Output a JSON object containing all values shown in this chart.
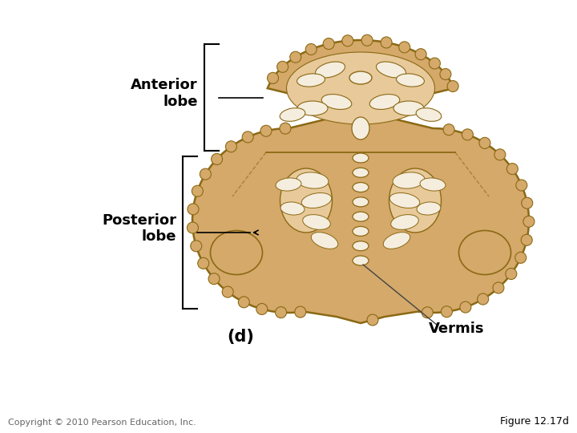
{
  "background_color": "#ffffff",
  "cerebellum_color": "#d4a96a",
  "cerebellum_inner_color": "#e8c99a",
  "cerebellum_outline_color": "#8b6914",
  "white_matter_color": "#f5eedf",
  "labels": {
    "anterior_lobe": "Anterior\nlobe",
    "posterior_lobe": "Posterior\nlobe",
    "vermis": "Vermis",
    "panel": "(d)",
    "copyright": "Copyright © 2010 Pearson Education, Inc.",
    "figure": "Figure 12.17d"
  },
  "label_fontsize": 13,
  "small_fontsize": 8,
  "figure_fontsize": 9
}
